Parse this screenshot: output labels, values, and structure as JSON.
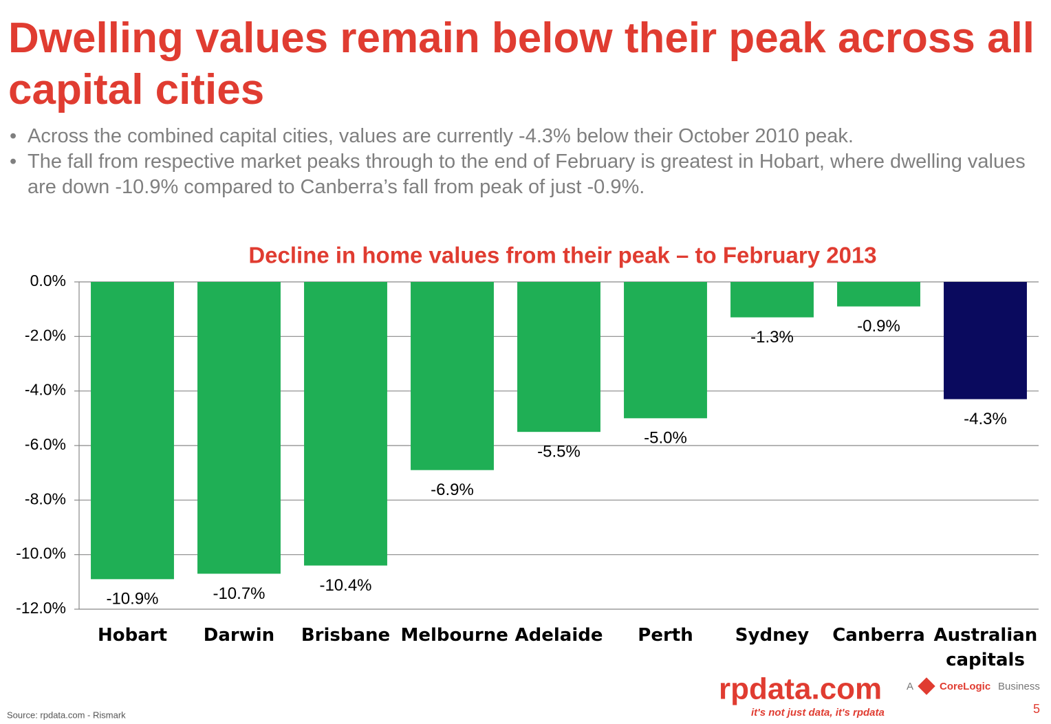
{
  "slide": {
    "title": "Dwelling values remain below their peak across all capital cities",
    "bullets": [
      "Across the combined capital cities, values are currently -4.3% below their October 2010 peak.",
      "The fall from respective market peaks through to the end of February is greatest in Hobart, where dwelling values are down -10.9% compared to Canberra’s fall from peak of just -0.9%."
    ]
  },
  "chart_data": {
    "type": "bar",
    "title": "Decline in home values from their peak – to February 2013",
    "categories": [
      "Hobart",
      "Darwin",
      "Brisbane",
      "Melbourne",
      "Adelaide",
      "Perth",
      "Sydney",
      "Canberra",
      "Australian capitals"
    ],
    "values": [
      -10.9,
      -10.7,
      -10.4,
      -6.9,
      -5.5,
      -5.0,
      -1.3,
      -0.9,
      -4.3
    ],
    "value_labels": [
      "-10.9%",
      "-10.7%",
      "-10.4%",
      "-6.9%",
      "-5.5%",
      "-5.0%",
      "-1.3%",
      "-0.9%",
      "-4.3%"
    ],
    "colors": [
      "#1faf55",
      "#1faf55",
      "#1faf55",
      "#1faf55",
      "#1faf55",
      "#1faf55",
      "#1faf55",
      "#1faf55",
      "#0a0a5e"
    ],
    "ylim": [
      -12,
      0
    ],
    "yticks": [
      {
        "value": 0,
        "label": "0.0%"
      },
      {
        "value": -2,
        "label": "-2.0%"
      },
      {
        "value": -4,
        "label": "-4.0%"
      },
      {
        "value": -6,
        "label": "-6.0%"
      },
      {
        "value": -8,
        "label": "-8.0%"
      },
      {
        "value": -10,
        "label": "-10.0%"
      },
      {
        "value": -12,
        "label": "-12.0%"
      }
    ],
    "grid": true
  },
  "footer": {
    "source": "Source:  rpdata.com - Rismark",
    "logo": "rpdata.com",
    "tagline": "it's not just data, it's rpdata",
    "brand_a": "A",
    "brand_name": "CoreLogic",
    "brand_suffix": "Business",
    "page": "5"
  }
}
